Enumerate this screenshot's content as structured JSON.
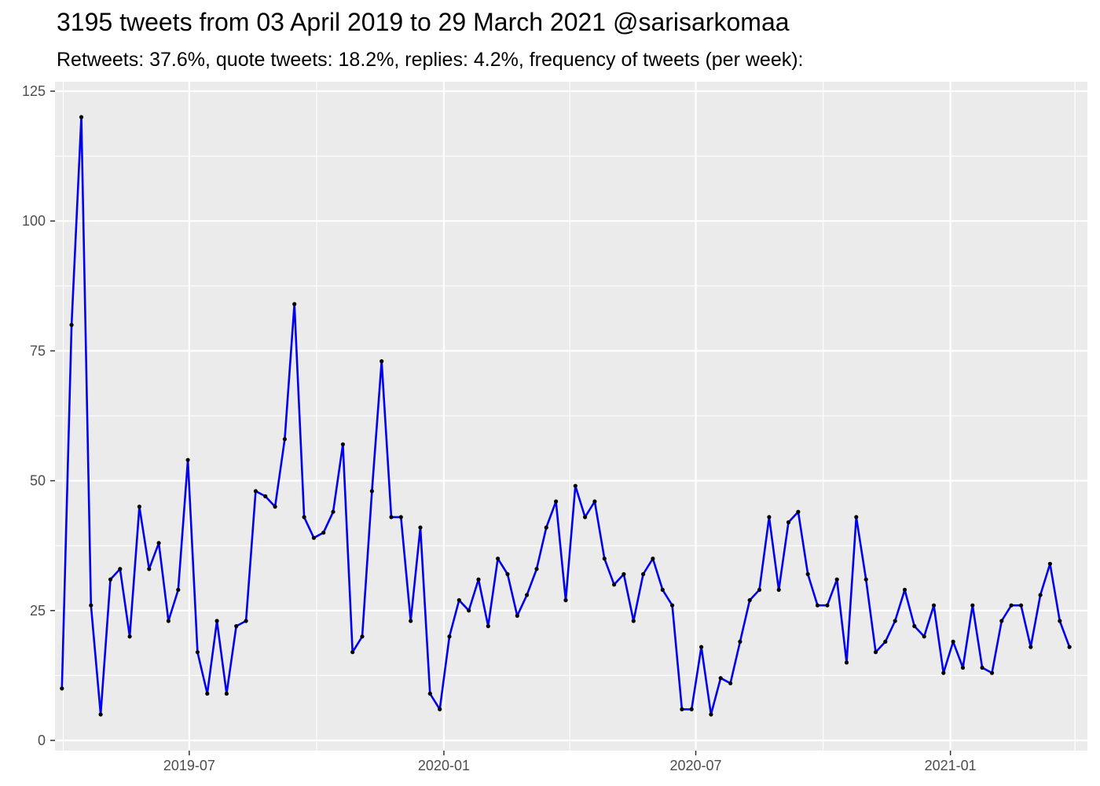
{
  "title": "3195 tweets from 03 April 2019 to 29 March 2021 @sarisarkomaa",
  "subtitle": "Retweets: 37.6%, quote tweets: 18.2%, replies: 4.2%, frequency of tweets (per week):",
  "colors": {
    "panel": "#ebebeb",
    "grid": "#ffffff",
    "line": "#0000ee",
    "point": "#000000",
    "tick_text": "#4d4d4d"
  },
  "chart_data": {
    "type": "line",
    "title": "3195 tweets from 03 April 2019 to 29 March 2021 @sarisarkomaa",
    "subtitle": "Retweets: 37.6%, quote tweets: 18.2%, replies: 4.2%, frequency of tweets (per week):",
    "xlabel": "",
    "ylabel": "",
    "ylim": [
      0,
      125
    ],
    "xlim": [
      "2019-03-26",
      "2021-04-10"
    ],
    "grid": true,
    "y_ticks": [
      0,
      25,
      50,
      75,
      100,
      125
    ],
    "x_ticks": [
      "2019-07-01",
      "2020-01-01",
      "2020-07-01",
      "2021-01-01"
    ],
    "x_tick_labels": [
      "2019-07",
      "2020-01",
      "2020-07",
      "2021-01"
    ],
    "x_minor_ticks": [
      "2019-04-01",
      "2019-10-01",
      "2020-04-01",
      "2020-10-01",
      "2021-04-01"
    ],
    "series": [
      {
        "x": [
          "2019-03-31",
          "2019-04-07",
          "2019-04-14",
          "2019-04-21",
          "2019-04-28",
          "2019-05-05",
          "2019-05-12",
          "2019-05-19",
          "2019-05-26",
          "2019-06-02",
          "2019-06-09",
          "2019-06-16",
          "2019-06-23",
          "2019-06-30",
          "2019-07-07",
          "2019-07-14",
          "2019-07-21",
          "2019-07-28",
          "2019-08-04",
          "2019-08-11",
          "2019-08-18",
          "2019-08-25",
          "2019-09-01",
          "2019-09-08",
          "2019-09-15",
          "2019-09-22",
          "2019-09-29",
          "2019-10-06",
          "2019-10-13",
          "2019-10-20",
          "2019-10-27",
          "2019-11-03",
          "2019-11-10",
          "2019-11-17",
          "2019-11-24",
          "2019-12-01",
          "2019-12-08",
          "2019-12-15",
          "2019-12-22",
          "2019-12-29",
          "2020-01-05",
          "2020-01-12",
          "2020-01-19",
          "2020-01-26",
          "2020-02-02",
          "2020-02-09",
          "2020-02-16",
          "2020-02-23",
          "2020-03-01",
          "2020-03-08",
          "2020-03-15",
          "2020-03-22",
          "2020-03-29",
          "2020-04-05",
          "2020-04-12",
          "2020-04-19",
          "2020-04-26",
          "2020-05-03",
          "2020-05-10",
          "2020-05-17",
          "2020-05-24",
          "2020-05-31",
          "2020-06-07",
          "2020-06-14",
          "2020-06-21",
          "2020-06-28",
          "2020-07-05",
          "2020-07-12",
          "2020-07-19",
          "2020-07-26",
          "2020-08-02",
          "2020-08-09",
          "2020-08-16",
          "2020-08-23",
          "2020-08-30",
          "2020-09-06",
          "2020-09-13",
          "2020-09-20",
          "2020-09-27",
          "2020-10-04",
          "2020-10-11",
          "2020-10-18",
          "2020-10-25",
          "2020-11-01",
          "2020-11-08",
          "2020-11-15",
          "2020-11-22",
          "2020-11-29",
          "2020-12-06",
          "2020-12-13",
          "2020-12-20",
          "2020-12-27",
          "2021-01-03",
          "2021-01-10",
          "2021-01-17",
          "2021-01-24",
          "2021-01-31",
          "2021-02-07",
          "2021-02-14",
          "2021-02-21",
          "2021-02-28",
          "2021-03-07",
          "2021-03-14",
          "2021-03-21",
          "2021-03-28"
        ],
        "values": [
          10,
          80,
          120,
          26,
          5,
          31,
          33,
          20,
          45,
          33,
          38,
          23,
          29,
          54,
          17,
          9,
          23,
          9,
          22,
          23,
          48,
          47,
          45,
          58,
          84,
          43,
          39,
          40,
          44,
          57,
          17,
          20,
          48,
          73,
          43,
          43,
          23,
          41,
          9,
          6,
          20,
          27,
          25,
          31,
          22,
          35,
          32,
          24,
          28,
          33,
          41,
          46,
          27,
          49,
          43,
          46,
          35,
          30,
          32,
          23,
          32,
          35,
          29,
          26,
          6,
          6,
          18,
          5,
          12,
          11,
          19,
          27,
          29,
          43,
          29,
          42,
          44,
          32,
          26,
          26,
          31,
          15,
          43,
          31,
          17,
          19,
          23,
          29,
          22,
          20,
          26,
          13,
          19,
          14,
          26,
          14,
          13,
          23,
          26,
          26,
          18,
          28,
          34,
          23,
          18
        ]
      }
    ]
  }
}
